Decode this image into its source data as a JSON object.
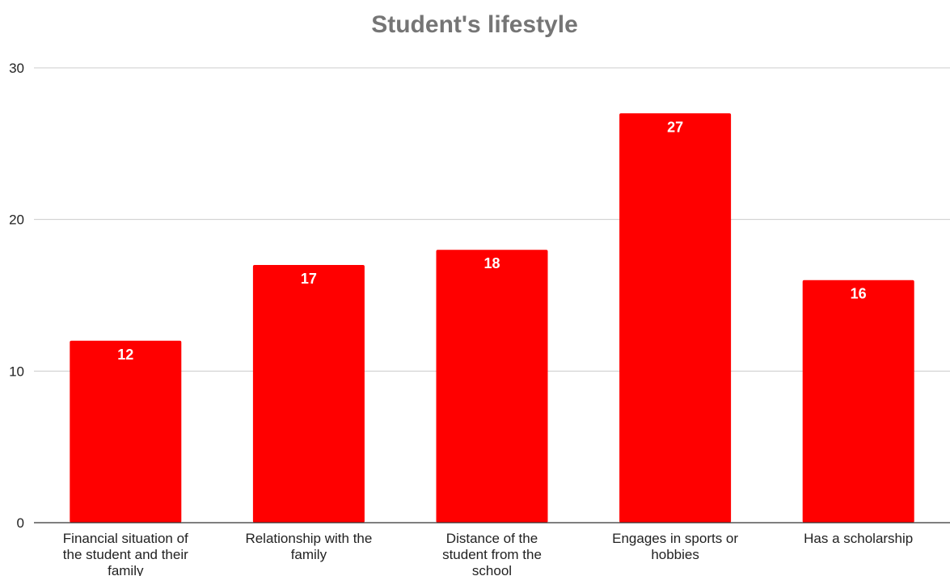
{
  "chart_data": {
    "type": "bar",
    "title": "Student's lifestyle",
    "xlabel": "",
    "ylabel": "",
    "ylim": [
      0,
      30
    ],
    "yticks": [
      0,
      10,
      20,
      30
    ],
    "grid": true,
    "legend": "none",
    "bar_color": "#ff0000",
    "categories": [
      [
        "Financial situation of",
        "the student and their",
        "family"
      ],
      [
        "Relationship with the",
        "family"
      ],
      [
        "Distance of the",
        "student from the",
        "school"
      ],
      [
        "Engages in sports or",
        "hobbies"
      ],
      [
        "Has a scholarship"
      ]
    ],
    "values": [
      12,
      17,
      18,
      27,
      16
    ]
  }
}
